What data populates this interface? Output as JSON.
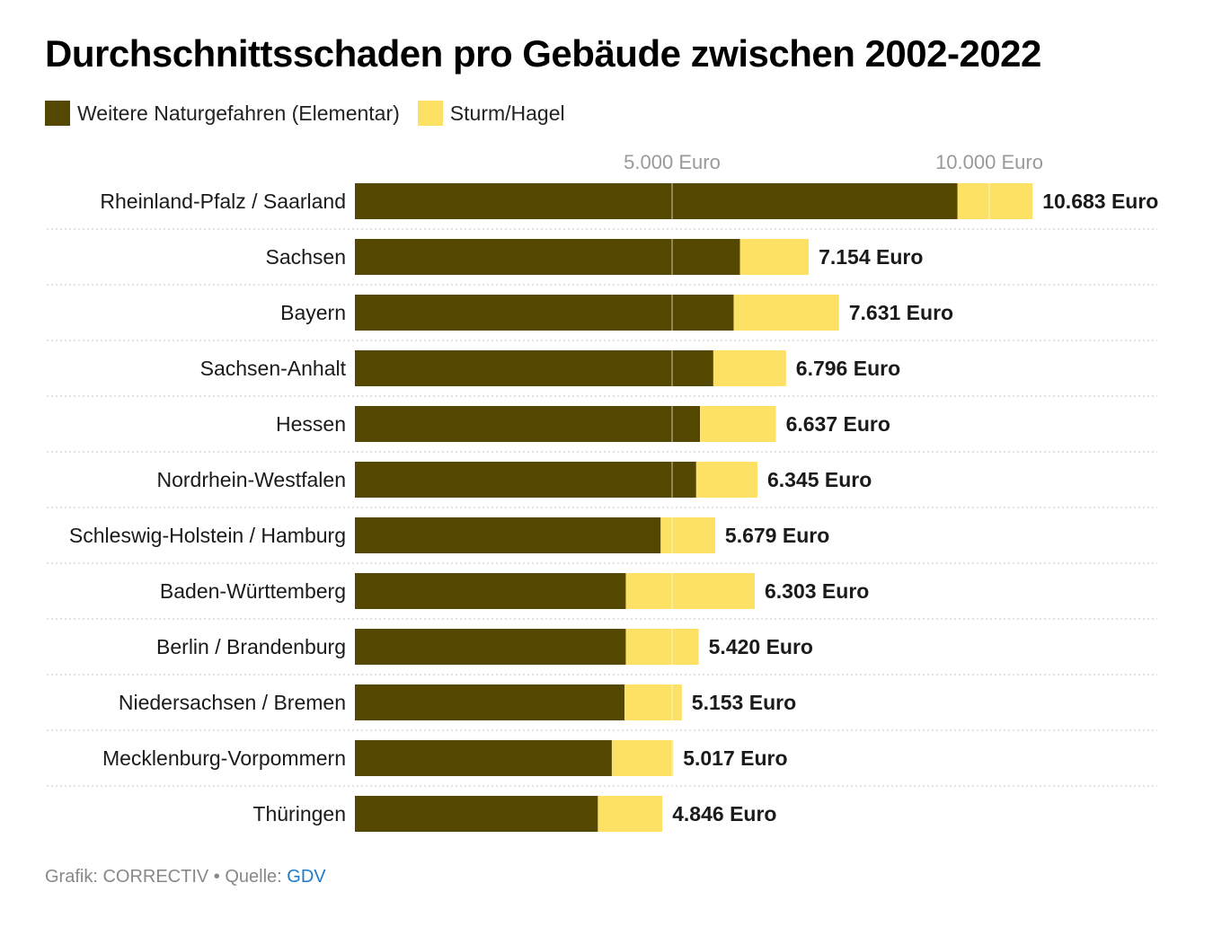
{
  "title": "Durchschnittsschaden pro Gebäude zwischen 2002-2022",
  "legend": [
    {
      "label": "Weitere Naturgefahren (Elementar)",
      "color": "#544700"
    },
    {
      "label": "Sturm/Hagel",
      "color": "#fde164"
    }
  ],
  "footer": {
    "prefix": "Grafik: CORRECTIV • Quelle: ",
    "source": "GDV"
  },
  "chart_data": {
    "type": "bar",
    "orientation": "horizontal",
    "stacked": true,
    "xlim": [
      0,
      11000
    ],
    "ticks": [
      {
        "value": 5000,
        "label": "5.000 Euro"
      },
      {
        "value": 10000,
        "label": "10.000 Euro"
      }
    ],
    "categories": [
      "Rheinland-Pfalz / Saarland",
      "Sachsen",
      "Bayern",
      "Sachsen-Anhalt",
      "Hessen",
      "Nordrhein-Westfalen",
      "Schleswig-Holstein / Hamburg",
      "Baden-Württemberg",
      "Berlin / Brandenburg",
      "Niedersachsen / Bremen",
      "Mecklenburg-Vorpommern",
      "Thüringen"
    ],
    "series": [
      {
        "name": "Weitere Naturgefahren (Elementar)",
        "color": "#544700",
        "values": [
          9500,
          6070,
          5970,
          5650,
          5440,
          5380,
          4820,
          4270,
          4270,
          4250,
          4050,
          3830
        ]
      },
      {
        "name": "Sturm/Hagel",
        "color": "#fde164",
        "values": [
          1183,
          1084,
          1661,
          1146,
          1197,
          965,
          859,
          2033,
          1150,
          903,
          967,
          1016
        ]
      }
    ],
    "totals": [
      10683,
      7154,
      7631,
      6796,
      6637,
      6345,
      5679,
      6303,
      5420,
      5153,
      5017,
      4846
    ],
    "total_labels": [
      "10.683 Euro",
      "7.154 Euro",
      "7.631 Euro",
      "6.796 Euro",
      "6.637 Euro",
      "6.345 Euro",
      "5.679 Euro",
      "6.303 Euro",
      "5.420 Euro",
      "5.153 Euro",
      "5.017 Euro",
      "4.846 Euro"
    ]
  }
}
